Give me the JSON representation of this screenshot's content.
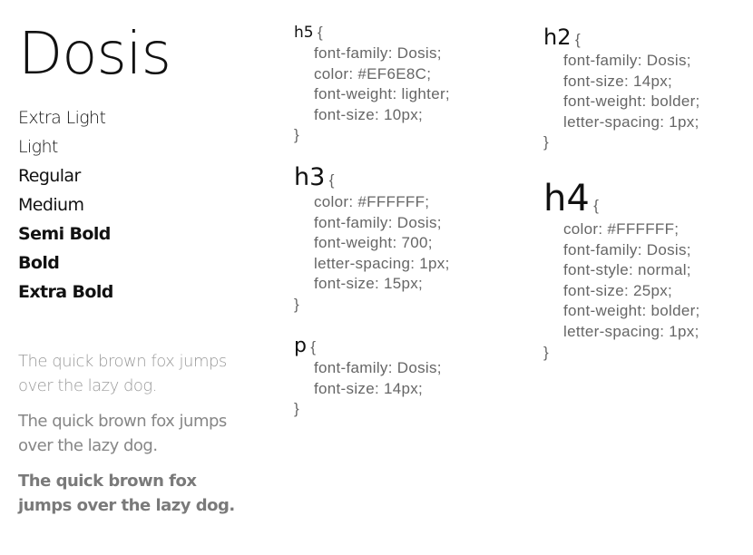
{
  "specimen": {
    "font_name": "Dosis",
    "weights": [
      "Extra Light",
      "Light",
      "Regular",
      "Medium",
      "Semi Bold",
      "Bold",
      "Extra Bold"
    ],
    "samples": [
      "The quick brown fox jumps over the lazy dog.",
      "The quick brown fox jumps over the lazy dog.",
      "The quick brown fox jumps over the lazy dog."
    ]
  },
  "css_rules": {
    "h5": {
      "selector": "h5",
      "open": "{",
      "declarations": [
        "font-family: Dosis;",
        "color: #EF6E8C;",
        "font-weight: lighter;",
        "font-size: 10px;"
      ],
      "close": "}"
    },
    "h3": {
      "selector": "h3",
      "open": "{",
      "declarations": [
        "color: #FFFFFF;",
        "font-family: Dosis;",
        "font-weight: 700;",
        "letter-spacing: 1px;",
        "font-size: 15px;"
      ],
      "close": "}"
    },
    "p": {
      "selector": "p",
      "open": "{",
      "declarations": [
        "font-family: Dosis;",
        "font-size: 14px;"
      ],
      "close": "}"
    },
    "h2": {
      "selector": "h2",
      "open": "{",
      "declarations": [
        "font-family: Dosis;",
        "font-size: 14px;",
        "font-weight: bolder;",
        "letter-spacing: 1px;"
      ],
      "close": "}"
    },
    "h4": {
      "selector": "h4",
      "open": "{",
      "declarations": [
        "color: #FFFFFF;",
        "font-family: Dosis;",
        "font-style: normal;",
        "font-size: 25px;",
        "font-weight: bolder;",
        "letter-spacing: 1px;"
      ],
      "close": "}"
    }
  }
}
